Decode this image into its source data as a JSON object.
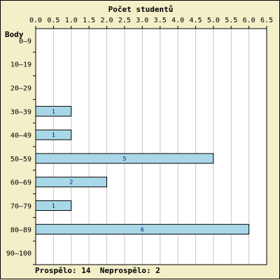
{
  "chart_data": {
    "type": "bar",
    "orientation": "horizontal",
    "title": "Počet studentů",
    "ylabel": "Body",
    "xlim": [
      0,
      6.5
    ],
    "x_ticks": [
      "0.0",
      "0.5",
      "1.0",
      "1.5",
      "2.0",
      "2.5",
      "3.0",
      "3.5",
      "4.0",
      "4.5",
      "5.0",
      "5.5",
      "6.0",
      "6.5"
    ],
    "categories": [
      "0–9",
      "10–19",
      "20–29",
      "30–39",
      "40–49",
      "50–59",
      "60–69",
      "70–79",
      "80–89",
      "90–100"
    ],
    "values": [
      0,
      0,
      0,
      1,
      1,
      5,
      2,
      1,
      6,
      0
    ],
    "grid": true,
    "colors": {
      "bar": "#a8d8e8",
      "background": "#f2efc9",
      "plot": "#ffffff",
      "grid": "#c8c8c8",
      "value_text": "#000080"
    }
  },
  "footer": {
    "passed_label": "Prospělo:",
    "passed_value": "14",
    "failed_label": "Neprospělo:",
    "failed_value": "2"
  }
}
